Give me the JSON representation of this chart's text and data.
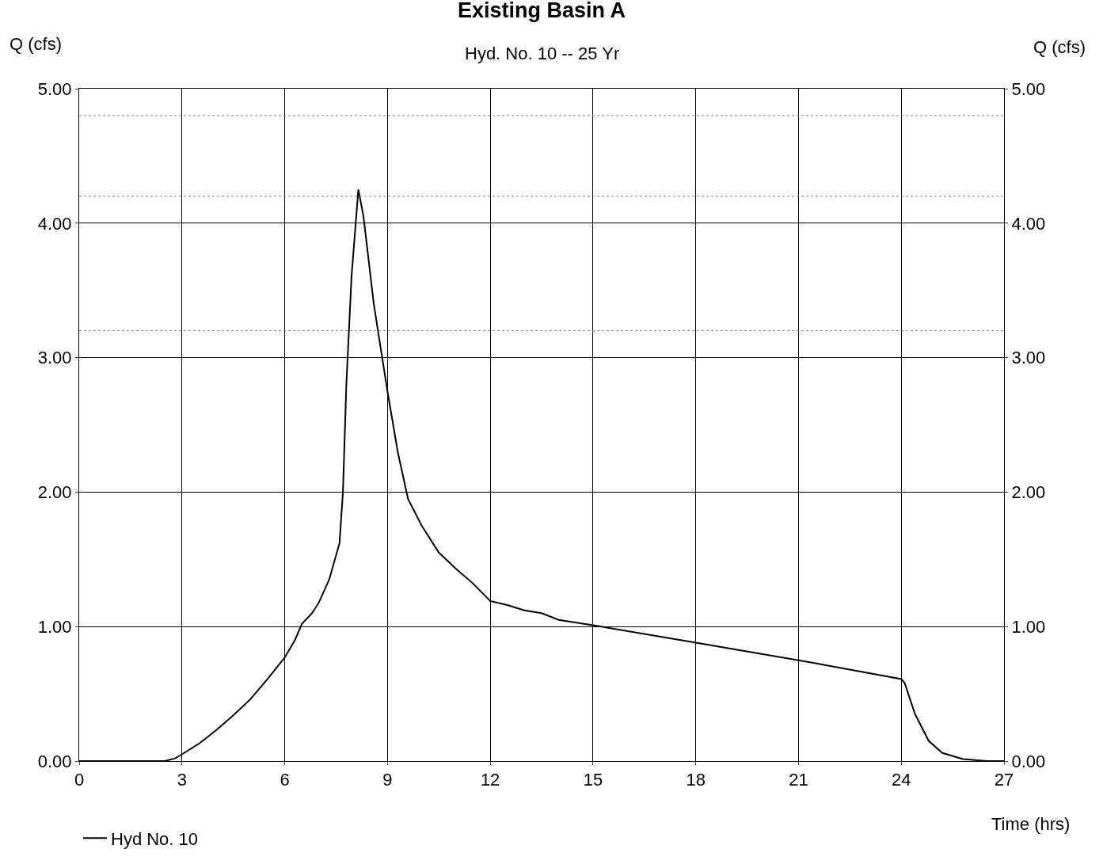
{
  "chart_data": {
    "type": "line",
    "title": "Existing Basin A",
    "subtitle": "Hyd. No. 10 -- 25 Yr",
    "xlabel": "Time (hrs)",
    "ylabel": "Q (cfs)",
    "y2label": "Q (cfs)",
    "xlim": [
      0,
      27
    ],
    "xticks": [
      0,
      3,
      6,
      9,
      12,
      15,
      18,
      21,
      24,
      27
    ],
    "ylim": [
      0,
      5
    ],
    "yticks": [
      {
        "value": 0,
        "label": "0.00"
      },
      {
        "value": 1,
        "label": "1.00"
      },
      {
        "value": 2,
        "label": "2.00"
      },
      {
        "value": 3,
        "label": "3.00"
      },
      {
        "value": 4,
        "label": "4.00"
      },
      {
        "value": 5,
        "label": "5.00"
      }
    ],
    "y2lim": [
      0,
      5
    ],
    "y2ticks": [
      {
        "value": 0,
        "label": "0.00"
      },
      {
        "value": 1,
        "label": "1.00"
      },
      {
        "value": 2,
        "label": "2.00"
      },
      {
        "value": 3,
        "label": "3.00"
      },
      {
        "value": 4,
        "label": "4.00"
      },
      {
        "value": 5,
        "label": "5.00"
      }
    ],
    "grid": true,
    "legend": "bottom left",
    "line_style": "solid",
    "ref_lines": [
      {
        "axis": "y",
        "value": 4.8,
        "color": "#808080",
        "line_style": "dotted"
      },
      {
        "axis": "y",
        "value": 4.2,
        "color": "#808080",
        "line_style": "dotted"
      },
      {
        "axis": "y",
        "value": 3.2,
        "color": "#808080",
        "line_style": "dotted"
      }
    ],
    "series": [
      {
        "name": "Hyd No. 10",
        "color": "#000000",
        "x": [
          0,
          2.5,
          2.8,
          3,
          3.5,
          4,
          4.5,
          5,
          5.5,
          6,
          6.3,
          6.5,
          6.8,
          7,
          7.3,
          7.6,
          7.7,
          7.8,
          7.95,
          8.15,
          8.3,
          8.6,
          9,
          9.3,
          9.6,
          10,
          10.5,
          11,
          11.5,
          12,
          12.5,
          13,
          13.5,
          14,
          15,
          18,
          21,
          24,
          24.1,
          24.4,
          24.8,
          25.2,
          25.8,
          26.5,
          27
        ],
        "values": [
          0,
          0,
          0.02,
          0.05,
          0.13,
          0.23,
          0.34,
          0.46,
          0.61,
          0.77,
          0.9,
          1.02,
          1.1,
          1.18,
          1.35,
          1.62,
          2.0,
          2.8,
          3.6,
          4.25,
          4.05,
          3.4,
          2.75,
          2.3,
          1.95,
          1.75,
          1.55,
          1.43,
          1.32,
          1.19,
          1.16,
          1.12,
          1.1,
          1.05,
          1.01,
          0.88,
          0.75,
          0.61,
          0.58,
          0.35,
          0.15,
          0.06,
          0.015,
          0,
          0
        ]
      }
    ]
  }
}
